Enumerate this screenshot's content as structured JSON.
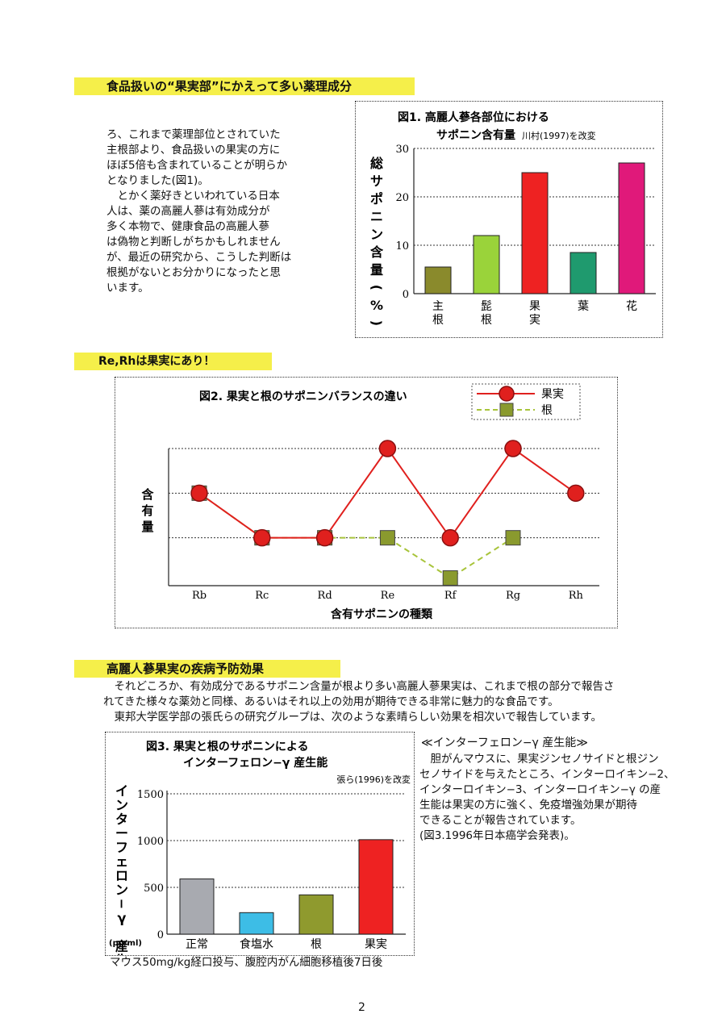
{
  "heading1": "食品扱いの“果実部”にかえって多い薬理成分",
  "intro_paragraph": "ろ、これまで薬理部位とされていた\n主根部より、食品扱いの果実の方に\nほぼ5倍も含まれていることが明らか\nとなりました(図1)。\n　とかく薬好きといわれている日本\n人は、薬の高麗人蔘は有効成分が\n多く本物で、健康食品の高麗人蔘\nは偽物と判断しがちかもしれません\nが、最近の研究から、こうした判断は\n根拠がないとお分かりになったと思\nいます。",
  "heading2": "Re,Rhは果実にあり！",
  "heading3": "高麗人蔘果実の疾病予防効果",
  "section3_paragraph": "　それどころか、有効成分であるサポニン含量が根より多い高麗人蔘果実は、これまで根の部分で報告さ\nれてきた様々な薬効と同様、あるいはそれ以上の効用が期待できる非常に魅力的な食品です。\n　東邦大学医学部の張氏らの研究グループは、次のような素晴らしい効果を相次いで報告しています。",
  "interferon_title": "≪インターフェロン−γ 産生能≫",
  "interferon_body": "　胆がんマウスに、果実ジンセノサイドと根ジン\nセノサイドを与えたところ、インターロイキン−2、\nインターロイキン−3、インターロイキン−γ の産\n生能は果実の方に強く、免疫増強効果が期待\nできることが報告されています。\n(図3.1996年日本癌学会発表)。",
  "fig3_caption": "マウス50mg/kg経口投与、腹腔内がん細胞移植後7日後",
  "page_number": "2",
  "chart_data": [
    {
      "type": "bar",
      "title": "図1.  高麗人蔘各部位における",
      "subtitle": "サポニン含有量",
      "source": "川村(1997)を改変",
      "ylabel": "総サポニン含量(%)",
      "categories": [
        "主根",
        "髭根",
        "果実",
        "葉",
        "花"
      ],
      "values": [
        5.5,
        12,
        25,
        8.5,
        27
      ],
      "colors": [
        "#8a8a2c",
        "#9ad33a",
        "#ee2222",
        "#1f9a6e",
        "#e0197a"
      ],
      "ylim": [
        0,
        30
      ],
      "yticks": [
        0,
        10,
        20,
        30
      ],
      "grid": true
    },
    {
      "type": "line",
      "title": "図2.  果実と根のサポニンバランスの違い",
      "xlabel": "含有サポニンの種類",
      "ylabel": "含有量",
      "categories": [
        "Rb",
        "Rc",
        "Rd",
        "Re",
        "Rf",
        "Rg",
        "Rh"
      ],
      "ylim": [
        0,
        3
      ],
      "grid": true,
      "legend_position": "top-right",
      "series": [
        {
          "name": "果実",
          "values": [
            2,
            1,
            1,
            3,
            1,
            3,
            2
          ],
          "color": "#e0201e",
          "marker": "circle",
          "dash": "solid"
        },
        {
          "name": "根",
          "values": [
            2,
            1,
            1,
            1,
            0.1,
            1,
            null
          ],
          "color": "#a8c43a",
          "marker": "square",
          "dash": "dashed"
        }
      ]
    },
    {
      "type": "bar",
      "title": "図3.  果実と根のサポニンによる",
      "subtitle": "インターフェロン−γ 産生能",
      "source": "張ら(1996)を改変",
      "ylabel": "インターフェロン−γ 産生",
      "yunit": "(pg/ml)",
      "categories": [
        "正常",
        "食塩水",
        "根",
        "果実"
      ],
      "values": [
        590,
        230,
        420,
        1010
      ],
      "colors": [
        "#a8aab0",
        "#3dbde6",
        "#8f9a2e",
        "#ee2222"
      ],
      "ylim": [
        0,
        1500
      ],
      "yticks": [
        0,
        500,
        1000,
        1500
      ],
      "grid": true
    }
  ]
}
